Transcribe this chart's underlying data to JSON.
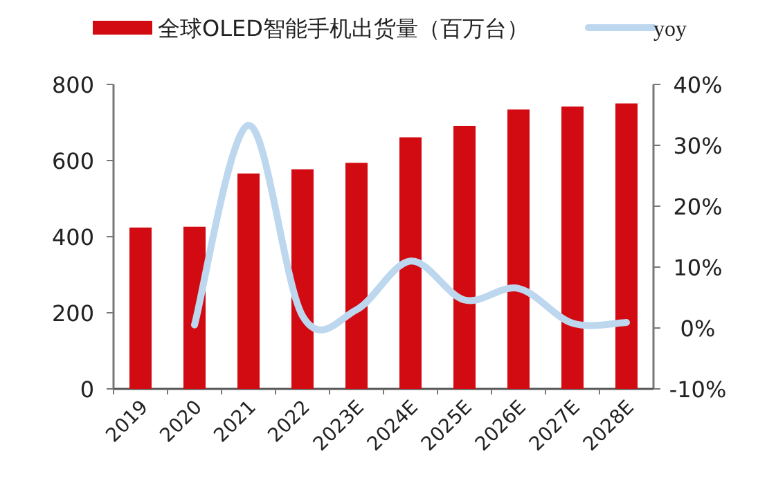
{
  "chart_data": {
    "type": "bar",
    "categories": [
      "2019",
      "2020",
      "2021",
      "2022",
      "2023E",
      "2024E",
      "2025E",
      "2026E",
      "2027E",
      "2028E"
    ],
    "series": [
      {
        "name": "全球OLED智能手机出货量（百万台）",
        "color": "#d20a11",
        "values": [
          424,
          426,
          566,
          577,
          594,
          661,
          691,
          734,
          742,
          750
        ]
      },
      {
        "name": "yoy",
        "type": "line",
        "axis": "y2",
        "color": "#bdd7ee",
        "values": [
          null,
          0.5,
          33.3,
          2,
          3,
          11,
          4.6,
          6.5,
          0.8,
          0.9
        ]
      }
    ],
    "ylim": [
      0,
      800
    ],
    "yticks": [
      0,
      200,
      400,
      600,
      800
    ],
    "y2lim": [
      -10,
      40
    ],
    "y2ticks": [
      {
        "value": -10,
        "label": "-10%"
      },
      {
        "value": 0,
        "label": "0%"
      },
      {
        "value": 10,
        "label": "10%"
      },
      {
        "value": 20,
        "label": "20%"
      },
      {
        "value": 30,
        "label": "30%"
      },
      {
        "value": 40,
        "label": "40%"
      }
    ],
    "legend": "top",
    "grid": false,
    "marker": "none",
    "line_style": "solid"
  }
}
